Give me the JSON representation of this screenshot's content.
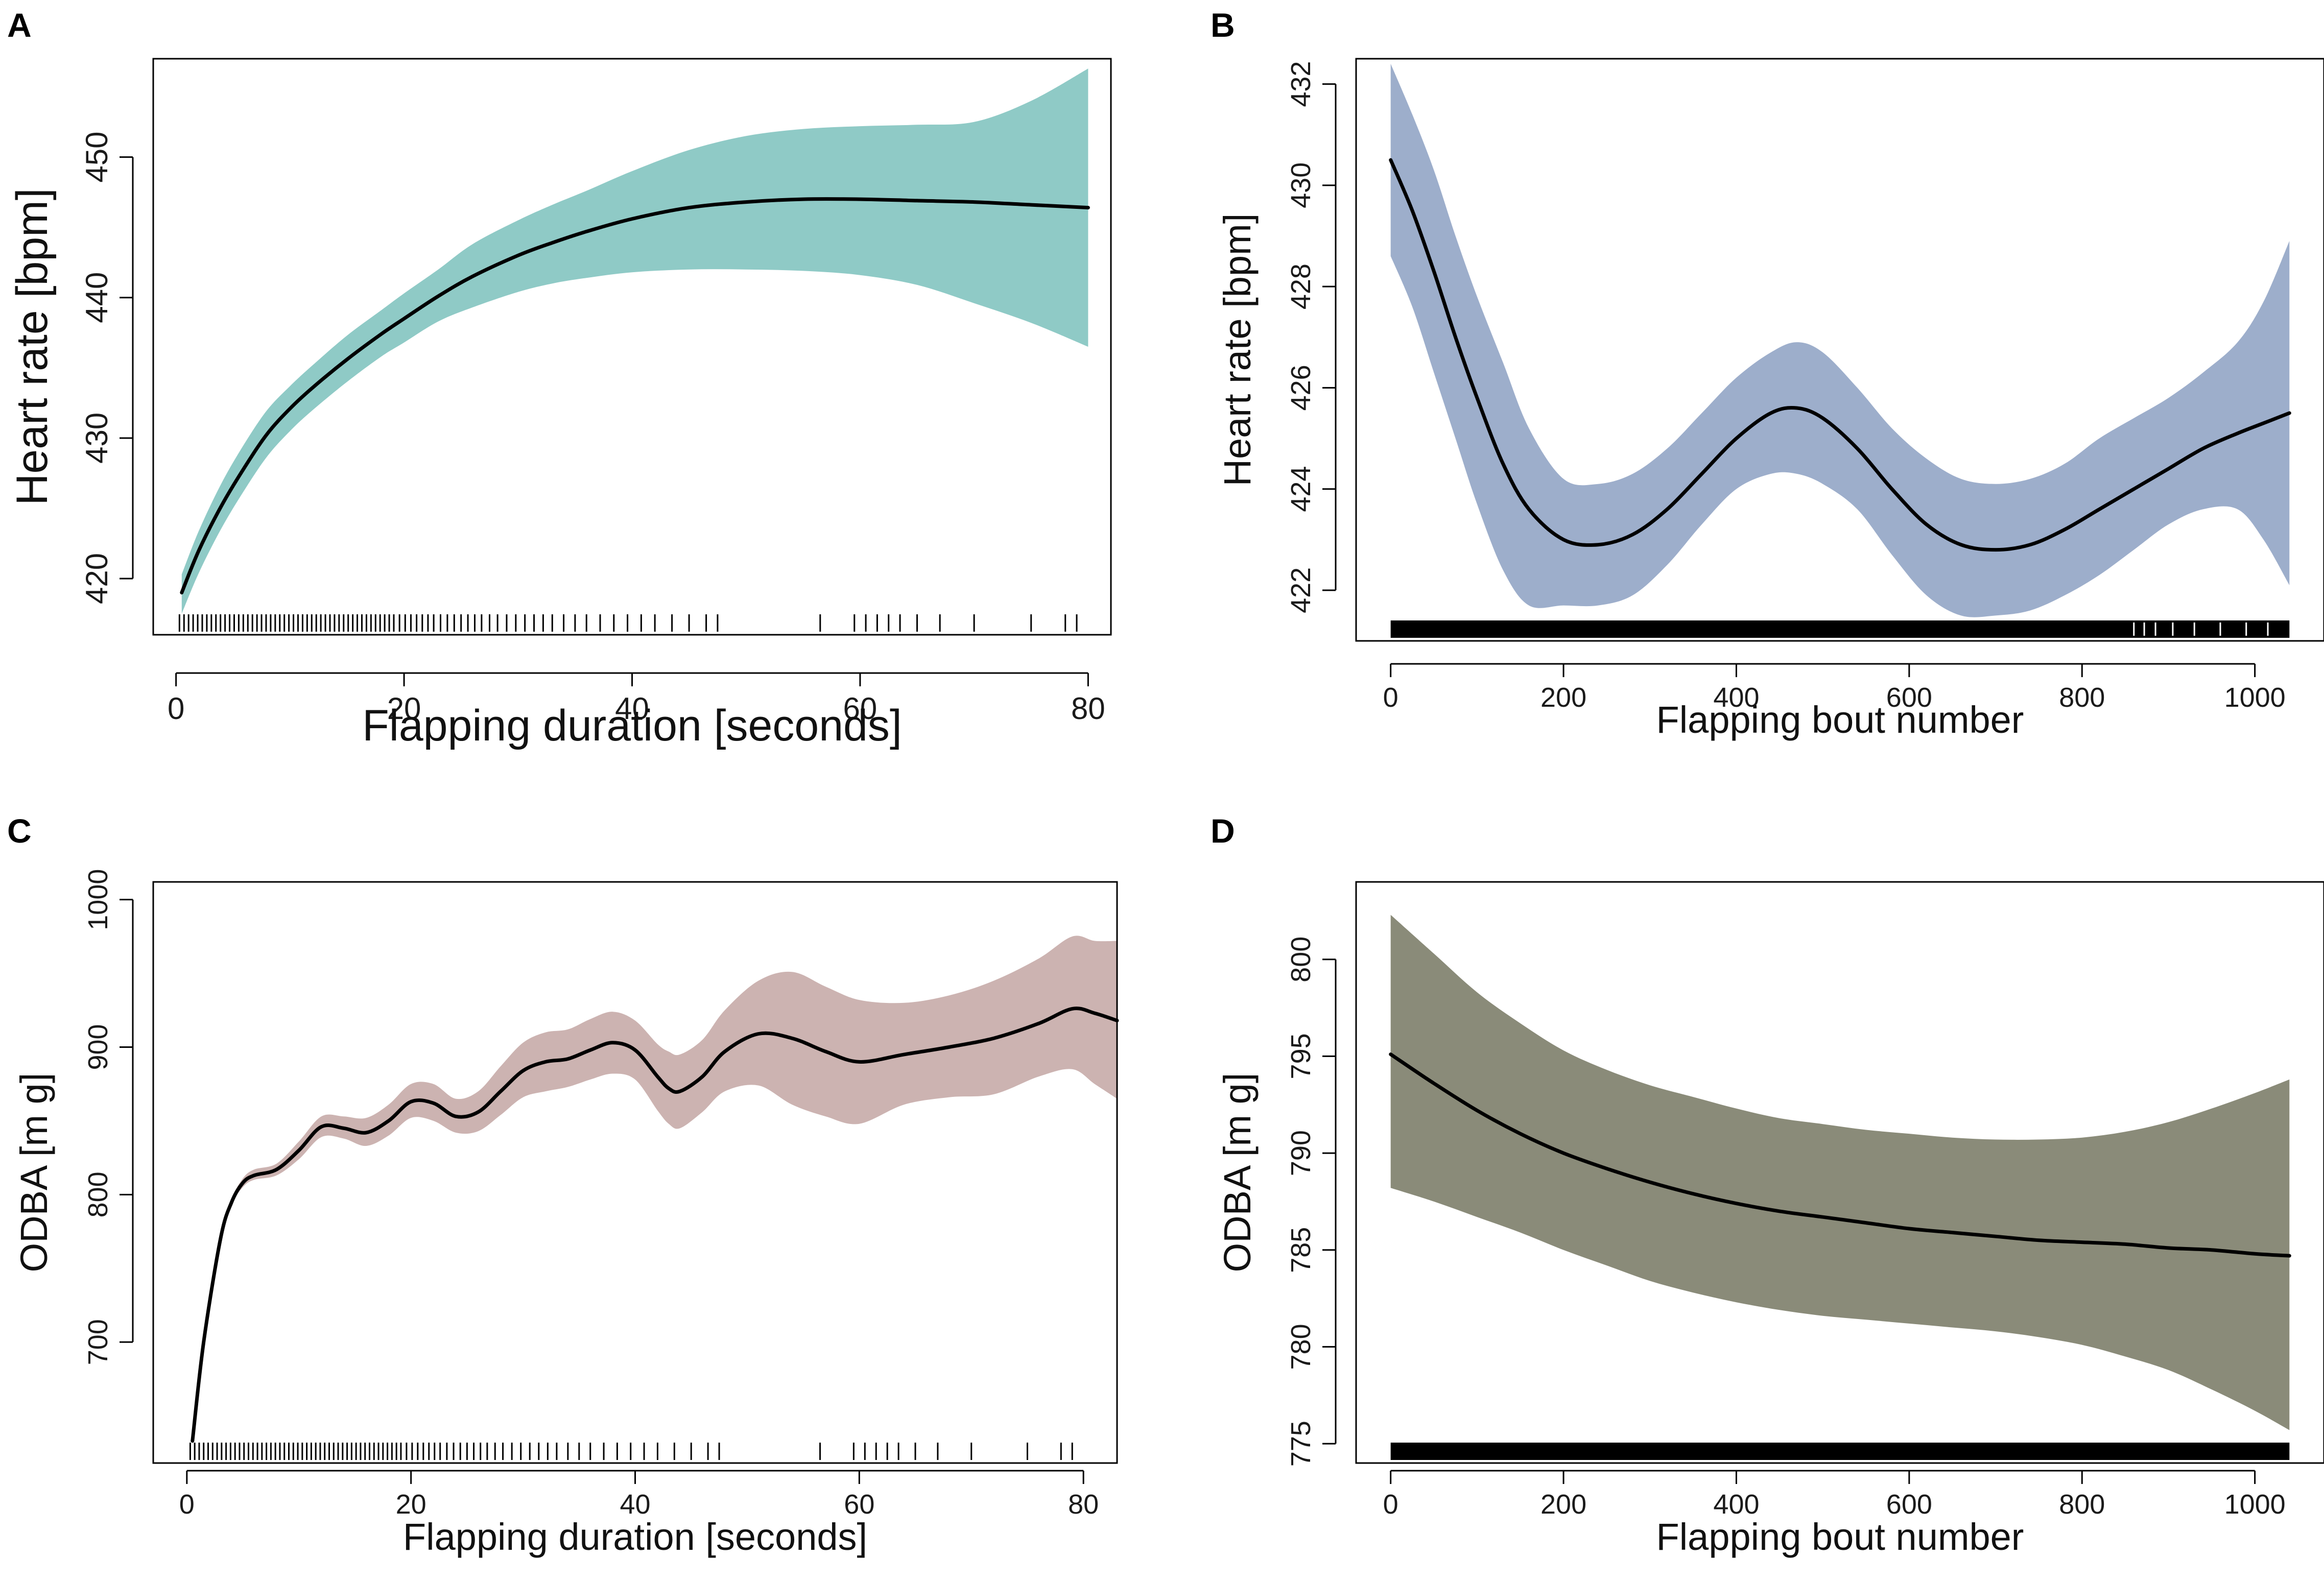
{
  "chart_data": [
    {
      "panel": "A",
      "type": "line",
      "title": "",
      "xlabel": "Flapping duration [seconds]",
      "ylabel": "Heart rate [bpm]",
      "xlim": [
        -2,
        82
      ],
      "ylim": [
        416,
        457
      ],
      "xticks": [
        0,
        20,
        40,
        60,
        80
      ],
      "yticks": [
        420,
        430,
        440,
        450
      ],
      "band_color": "#8fcac6",
      "series": [
        {
          "name": "fit",
          "x": [
            0.5,
            2,
            4,
            6,
            8,
            10,
            12,
            15,
            18,
            20,
            23,
            26,
            30,
            33,
            36,
            40,
            45,
            50,
            55,
            60,
            65,
            70,
            75,
            80
          ],
          "y": [
            419,
            422,
            425.2,
            427.9,
            430.3,
            432.1,
            433.6,
            435.6,
            437.4,
            438.5,
            440.1,
            441.5,
            443.0,
            443.9,
            444.7,
            445.6,
            446.4,
            446.8,
            447.0,
            447.0,
            446.9,
            446.8,
            446.6,
            446.4
          ],
          "lower": [
            417.5,
            420.4,
            423.6,
            426.3,
            428.7,
            430.5,
            432.0,
            434.0,
            435.8,
            436.8,
            438.3,
            439.3,
            440.4,
            441.0,
            441.4,
            441.8,
            442.0,
            442.0,
            441.9,
            441.6,
            440.9,
            439.6,
            438.2,
            436.5
          ],
          "upper": [
            420.3,
            423.4,
            426.8,
            429.6,
            432.0,
            433.7,
            435.2,
            437.3,
            439.1,
            440.3,
            442.0,
            443.8,
            445.5,
            446.6,
            447.6,
            449.0,
            450.5,
            451.5,
            452.0,
            452.2,
            452.3,
            452.5,
            454.0,
            456.3
          ]
        }
      ],
      "rug": [
        0.3,
        0.7,
        1.1,
        1.5,
        1.9,
        2.3,
        2.7,
        3.1,
        3.5,
        3.9,
        4.3,
        4.7,
        5.1,
        5.5,
        5.9,
        6.3,
        6.7,
        7.1,
        7.5,
        7.9,
        8.3,
        8.7,
        9.1,
        9.5,
        9.9,
        10.3,
        10.7,
        11.1,
        11.5,
        11.9,
        12.3,
        12.7,
        13.1,
        13.5,
        13.9,
        14.3,
        14.7,
        15.1,
        15.5,
        15.9,
        16.3,
        16.7,
        17.1,
        17.5,
        17.9,
        18.3,
        18.7,
        19.1,
        19.6,
        20.1,
        20.6,
        21.1,
        21.6,
        22.1,
        22.6,
        23.2,
        23.8,
        24.4,
        25,
        25.6,
        26.2,
        26.8,
        27.5,
        28.2,
        29,
        29.8,
        30.6,
        31.4,
        32.2,
        33,
        34,
        35,
        36,
        37.2,
        38.4,
        39.6,
        40.8,
        42,
        43.5,
        45,
        46.5,
        47.5,
        56.5,
        59.5,
        60.5,
        61.5,
        62.5,
        63.5,
        65,
        67,
        70,
        75,
        78,
        79
      ]
    },
    {
      "panel": "B",
      "type": "line",
      "title": "",
      "xlabel": "Flapping bout number",
      "ylabel": "Heart rate [bpm]",
      "xlim": [
        -40,
        1080
      ],
      "ylim": [
        421,
        432.5
      ],
      "xticks": [
        0,
        200,
        400,
        600,
        800,
        1000
      ],
      "yticks": [
        422,
        424,
        426,
        428,
        430,
        432
      ],
      "band_color": "#9daecb",
      "series": [
        {
          "name": "fit",
          "x": [
            0,
            25,
            50,
            75,
            100,
            130,
            160,
            200,
            240,
            280,
            320,
            360,
            400,
            440,
            470,
            500,
            540,
            580,
            620,
            660,
            700,
            740,
            780,
            820,
            860,
            900,
            940,
            980,
            1010,
            1040
          ],
          "y": [
            430.5,
            429.5,
            428.3,
            427.0,
            425.8,
            424.5,
            423.6,
            423.0,
            422.9,
            423.1,
            423.6,
            424.3,
            425.0,
            425.5,
            425.6,
            425.4,
            424.8,
            424.0,
            423.3,
            422.9,
            422.8,
            422.9,
            423.2,
            423.6,
            424.0,
            424.4,
            424.8,
            425.1,
            425.3,
            425.5
          ],
          "lower": [
            428.6,
            427.6,
            426.3,
            425.0,
            423.7,
            422.4,
            421.7,
            421.7,
            421.7,
            421.9,
            422.5,
            423.3,
            424.0,
            424.3,
            424.3,
            424.1,
            423.6,
            422.7,
            421.9,
            421.5,
            421.5,
            421.6,
            421.9,
            422.3,
            422.8,
            423.3,
            423.6,
            423.6,
            423.0,
            422.1
          ],
          "upper": [
            432.4,
            431.4,
            430.3,
            429.0,
            427.8,
            426.5,
            425.2,
            424.2,
            424.1,
            424.3,
            424.8,
            425.5,
            426.2,
            426.7,
            426.9,
            426.7,
            426.0,
            425.2,
            424.6,
            424.2,
            424.1,
            424.2,
            424.5,
            425.0,
            425.4,
            425.8,
            426.3,
            426.9,
            427.7,
            428.9
          ]
        }
      ],
      "rug_range": [
        0,
        1040
      ]
    },
    {
      "panel": "C",
      "type": "line",
      "title": "",
      "xlabel": "Flapping duration [seconds]",
      "ylabel": "ODBA [m g]",
      "xlim": [
        -3,
        83
      ],
      "ylim": [
        618,
        1012
      ],
      "xticks": [
        0,
        20,
        40,
        60,
        80
      ],
      "yticks": [
        700,
        800,
        900,
        1000
      ],
      "band_color": "#ccb3b1",
      "series": [
        {
          "name": "fit",
          "x": [
            0.5,
            1.5,
            3,
            4,
            5,
            6,
            8,
            10,
            12,
            14,
            16,
            18,
            20,
            22,
            24,
            26,
            28,
            30,
            32,
            34,
            36,
            38,
            40,
            42,
            43,
            44,
            46,
            48,
            51,
            54,
            57,
            60,
            64,
            68,
            72,
            76,
            79,
            81,
            83
          ],
          "y": [
            633,
            700,
            770,
            795,
            808,
            813,
            817,
            830,
            846,
            845,
            842,
            850,
            863,
            862,
            853,
            856,
            870,
            884,
            890,
            892,
            898,
            903,
            898,
            880,
            872,
            870,
            880,
            897,
            909,
            906,
            897,
            890,
            895,
            900,
            906,
            916,
            926,
            923,
            918
          ],
          "lower": [
            633,
            699,
            768,
            793,
            805,
            810,
            813,
            824,
            839,
            838,
            833,
            840,
            852,
            850,
            842,
            843,
            854,
            866,
            870,
            873,
            878,
            882,
            878,
            857,
            848,
            845,
            856,
            870,
            874,
            861,
            853,
            848,
            861,
            866,
            868,
            880,
            885,
            875,
            865
          ],
          "upper": [
            634,
            702,
            772,
            797,
            811,
            817,
            821,
            836,
            853,
            853,
            852,
            861,
            875,
            875,
            865,
            870,
            887,
            903,
            910,
            912,
            919,
            924,
            918,
            902,
            897,
            895,
            905,
            925,
            945,
            951,
            941,
            932,
            930,
            935,
            945,
            960,
            975,
            972,
            972
          ]
        }
      ],
      "rug": [
        0.3,
        0.7,
        1.1,
        1.5,
        1.9,
        2.3,
        2.7,
        3.1,
        3.5,
        3.9,
        4.3,
        4.7,
        5.1,
        5.5,
        5.9,
        6.3,
        6.7,
        7.1,
        7.5,
        7.9,
        8.3,
        8.7,
        9.1,
        9.5,
        9.9,
        10.3,
        10.7,
        11.1,
        11.5,
        11.9,
        12.3,
        12.7,
        13.1,
        13.5,
        13.9,
        14.3,
        14.7,
        15.1,
        15.5,
        15.9,
        16.3,
        16.7,
        17.1,
        17.5,
        17.9,
        18.3,
        18.7,
        19.1,
        19.6,
        20.1,
        20.6,
        21.1,
        21.6,
        22.1,
        22.6,
        23.2,
        23.8,
        24.4,
        25,
        25.6,
        26.2,
        26.8,
        27.5,
        28.2,
        29,
        29.8,
        30.6,
        31.4,
        32.2,
        33,
        34,
        35,
        36,
        37.2,
        38.4,
        39.6,
        40.8,
        42,
        43.5,
        45,
        46.5,
        47.5,
        56.5,
        59.5,
        60.5,
        61.5,
        62.5,
        63.5,
        65,
        67,
        70,
        75,
        78,
        79
      ]
    },
    {
      "panel": "D",
      "type": "line",
      "title": "",
      "xlabel": "Flapping bout number",
      "ylabel": "ODBA [m g]",
      "xlim": [
        -40,
        1080
      ],
      "ylim": [
        774,
        804
      ],
      "xticks": [
        0,
        200,
        400,
        600,
        800,
        1000
      ],
      "yticks": [
        775,
        780,
        785,
        790,
        795,
        800
      ],
      "band_color": "#8a8b79",
      "series": [
        {
          "name": "fit",
          "x": [
            0,
            50,
            100,
            150,
            200,
            250,
            300,
            350,
            400,
            450,
            500,
            550,
            600,
            650,
            700,
            750,
            800,
            850,
            900,
            950,
            1000,
            1040
          ],
          "y": [
            795.1,
            793.6,
            792.2,
            791.0,
            790.0,
            789.2,
            788.5,
            787.9,
            787.4,
            787.0,
            786.7,
            786.4,
            786.1,
            785.9,
            785.7,
            785.5,
            785.4,
            785.3,
            785.1,
            785.0,
            784.8,
            784.7
          ],
          "lower": [
            788.2,
            787.5,
            786.7,
            785.9,
            785.0,
            784.2,
            783.4,
            782.8,
            782.3,
            781.9,
            781.6,
            781.4,
            781.2,
            781.0,
            780.8,
            780.5,
            780.1,
            779.5,
            778.8,
            777.8,
            776.7,
            775.7
          ],
          "upper": [
            802.3,
            800.3,
            798.3,
            796.7,
            795.3,
            794.3,
            793.5,
            792.9,
            792.3,
            791.8,
            791.5,
            791.2,
            791.0,
            790.8,
            790.7,
            790.7,
            790.8,
            791.1,
            791.6,
            792.3,
            793.1,
            793.8
          ]
        }
      ],
      "rug_range": [
        0,
        1040
      ]
    }
  ]
}
